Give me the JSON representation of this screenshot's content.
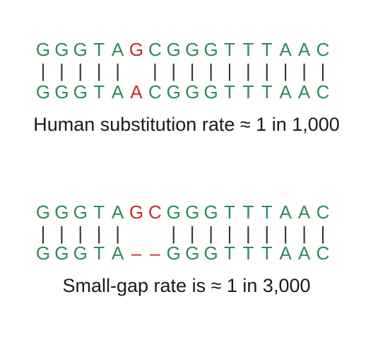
{
  "colors": {
    "base": "#2e8b57",
    "mismatch": "#c62828",
    "bar": "#333333",
    "text": "#1a1a1a"
  },
  "alignments": [
    {
      "top": [
        "G",
        "G",
        "G",
        "T",
        "A",
        "G",
        "C",
        "G",
        "G",
        "G",
        "T",
        "T",
        "T",
        "A",
        "A",
        "C"
      ],
      "bars": [
        "|",
        "|",
        "|",
        "|",
        "|",
        "",
        "|",
        "|",
        "|",
        "|",
        "|",
        "|",
        "|",
        "|",
        "|",
        "|"
      ],
      "bottom": [
        "G",
        "G",
        "G",
        "T",
        "A",
        "A",
        "C",
        "G",
        "G",
        "G",
        "T",
        "T",
        "T",
        "A",
        "A",
        "C"
      ],
      "top_highlight": [
        5
      ],
      "bottom_highlight": [
        5
      ],
      "caption": "Human substitution rate ≈ 1 in 1,000"
    },
    {
      "top": [
        "G",
        "G",
        "G",
        "T",
        "A",
        "G",
        "C",
        "G",
        "G",
        "G",
        "T",
        "T",
        "T",
        "A",
        "A",
        "C"
      ],
      "bars": [
        "|",
        "|",
        "|",
        "|",
        "|",
        "",
        "",
        "|",
        "|",
        "|",
        "|",
        "|",
        "|",
        "|",
        "|",
        "|"
      ],
      "bottom": [
        "G",
        "G",
        "G",
        "T",
        "A",
        "–",
        "–",
        "G",
        "G",
        "G",
        "T",
        "T",
        "T",
        "A",
        "A",
        "C"
      ],
      "top_highlight": [
        5,
        6
      ],
      "bottom_highlight": [
        5,
        6
      ],
      "caption": "Small-gap rate is ≈ 1 in 3,000"
    }
  ]
}
